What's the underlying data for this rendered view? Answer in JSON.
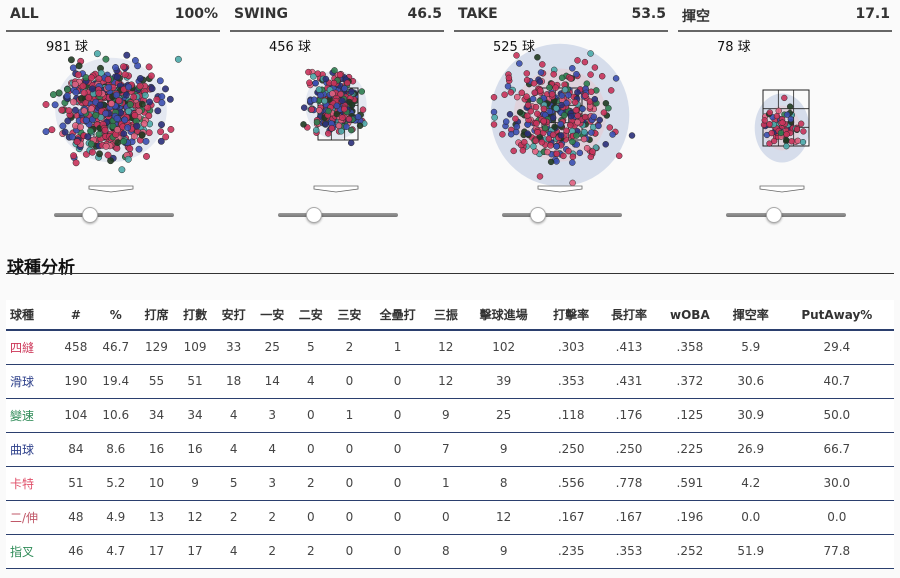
{
  "panels": [
    {
      "name": "ALL",
      "pct": "100%",
      "count": "981 球",
      "slider": 0.3
    },
    {
      "name": "SWING",
      "pct": "46.5",
      "count": "456 球",
      "slider": 0.3
    },
    {
      "name": "TAKE",
      "pct": "53.5",
      "count": "525 球",
      "slider": 0.3
    },
    {
      "name": "揮空",
      "pct": "17.1",
      "count": "78 球",
      "slider": 0.4
    }
  ],
  "colors": {
    "四縫": "#cc3355",
    "滑球": "#3344aa",
    "變速": "#2e8b57",
    "曲球": "#3a3a8a",
    "卡特": "#e05070",
    "二/伸": "#c06070",
    "指叉": "#3aa0a0"
  },
  "section_title": "球種分析",
  "table": {
    "headers": [
      "球種",
      "#",
      "%",
      "打席",
      "打數",
      "安打",
      "一安",
      "二安",
      "三安",
      "全壘打",
      "三振",
      "擊球進場",
      "打擊率",
      "長打率",
      "wOBA",
      "揮空率",
      "PutAway%"
    ],
    "rows": [
      {
        "color": "#cc3355",
        "cells": [
          "四縫",
          "458",
          "46.7",
          "129",
          "109",
          "33",
          "25",
          "5",
          "2",
          "1",
          "12",
          "102",
          ".303",
          ".413",
          ".358",
          "5.9",
          "29.4"
        ]
      },
      {
        "color": "#2c3f8a",
        "cells": [
          "滑球",
          "190",
          "19.4",
          "55",
          "51",
          "18",
          "14",
          "4",
          "0",
          "0",
          "12",
          "39",
          ".353",
          ".431",
          ".372",
          "30.6",
          "40.7"
        ]
      },
      {
        "color": "#2e8b57",
        "cells": [
          "變速",
          "104",
          "10.6",
          "34",
          "34",
          "4",
          "3",
          "0",
          "1",
          "0",
          "9",
          "25",
          ".118",
          ".176",
          ".125",
          "30.9",
          "50.0"
        ]
      },
      {
        "color": "#2c3f8a",
        "cells": [
          "曲球",
          "84",
          "8.6",
          "16",
          "16",
          "4",
          "4",
          "0",
          "0",
          "0",
          "7",
          "9",
          ".250",
          ".250",
          ".225",
          "26.9",
          "66.7"
        ]
      },
      {
        "color": "#e0506a",
        "cells": [
          "卡特",
          "51",
          "5.2",
          "10",
          "9",
          "5",
          "3",
          "2",
          "0",
          "0",
          "1",
          "8",
          ".556",
          ".778",
          ".591",
          "4.2",
          "30.0"
        ]
      },
      {
        "color": "#c05868",
        "cells": [
          "二/伸",
          "48",
          "4.9",
          "13",
          "12",
          "2",
          "2",
          "0",
          "0",
          "0",
          "0",
          "12",
          ".167",
          ".167",
          ".196",
          "0.0",
          "0.0"
        ]
      },
      {
        "color": "#2e8b57",
        "cells": [
          "指叉",
          "46",
          "4.7",
          "17",
          "17",
          "4",
          "2",
          "2",
          "0",
          "0",
          "8",
          "9",
          ".235",
          ".353",
          ".252",
          "51.9",
          "77.8"
        ]
      }
    ]
  }
}
